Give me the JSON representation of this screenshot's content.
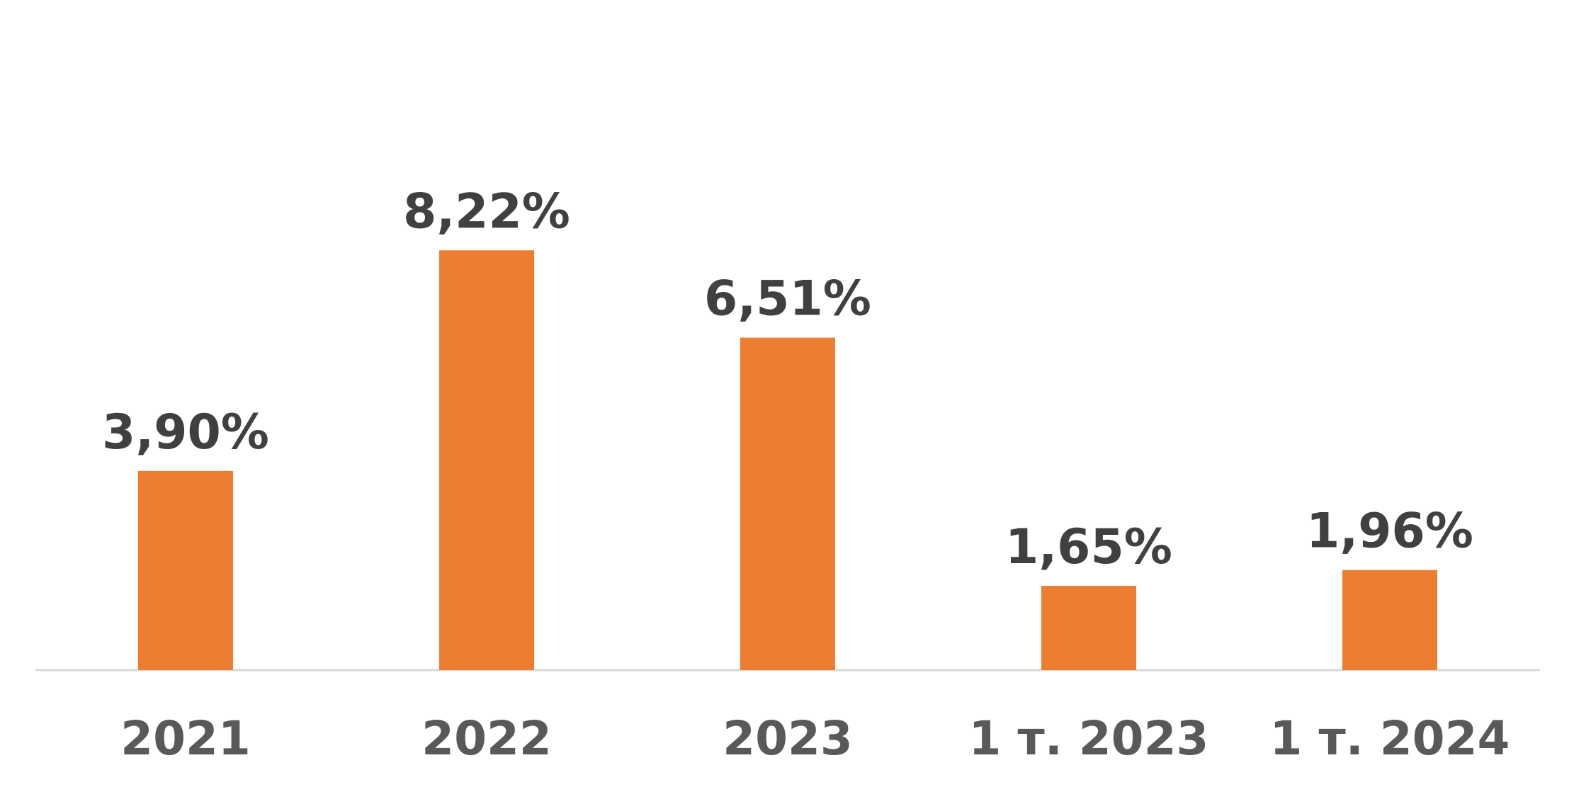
{
  "chart_data": {
    "type": "bar",
    "categories": [
      "2021",
      "2022",
      "2023",
      "1 т. 2023",
      "1 т. 2024"
    ],
    "values": [
      3.9,
      8.22,
      6.51,
      1.65,
      1.96
    ],
    "value_labels": [
      "3,90%",
      "8,22%",
      "6,51%",
      "1,65%",
      "1,96%"
    ],
    "title": "",
    "xlabel": "",
    "ylabel": "",
    "ylim": [
      0,
      12
    ],
    "grid": false,
    "legend": "none"
  },
  "colors": {
    "bar": "#ED7D31",
    "value_text": "#404040",
    "category_text": "#595959",
    "baseline": "#D9D9D9"
  }
}
